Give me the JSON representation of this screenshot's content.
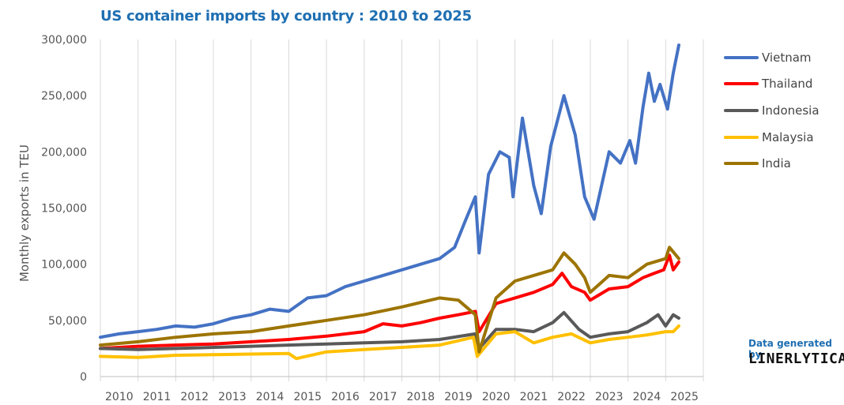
{
  "chart_data": {
    "type": "line",
    "title": "US container imports by country : 2010 to 2025",
    "xlabel": "",
    "ylabel": "Monthly exports in TEU",
    "ylim": [
      0,
      300000
    ],
    "yticks": [
      "0",
      "50,000",
      "100,000",
      "150,000",
      "200,000",
      "250,000",
      "300,000"
    ],
    "ytick_values": [
      0,
      50000,
      100000,
      150000,
      200000,
      250000,
      300000
    ],
    "xticks": [
      "2010",
      "2011",
      "2012",
      "2013",
      "2014",
      "2015",
      "2016",
      "2017",
      "2018",
      "2019",
      "2020",
      "2021",
      "2022",
      "2023",
      "2024",
      "2025"
    ],
    "grid": "vertical",
    "legend": "right",
    "series": [
      {
        "name": "Vietnam",
        "color": "#4472c4",
        "x": [
          2010.0,
          2010.5,
          2011.0,
          2011.5,
          2012.0,
          2012.5,
          2013.0,
          2013.5,
          2014.0,
          2014.5,
          2015.0,
          2015.5,
          2016.0,
          2016.5,
          2017.0,
          2017.5,
          2018.0,
          2018.5,
          2019.0,
          2019.4,
          2019.7,
          2019.95,
          2020.05,
          2020.3,
          2020.6,
          2020.85,
          2020.95,
          2021.2,
          2021.5,
          2021.7,
          2021.95,
          2022.3,
          2022.6,
          2022.85,
          2023.1,
          2023.5,
          2023.8,
          2024.05,
          2024.2,
          2024.4,
          2024.55,
          2024.7,
          2024.85,
          2025.05,
          2025.2,
          2025.35
        ],
        "y": [
          35000,
          38000,
          40000,
          42000,
          45000,
          44000,
          47000,
          52000,
          55000,
          60000,
          58000,
          70000,
          72000,
          80000,
          85000,
          90000,
          95000,
          100000,
          105000,
          115000,
          140000,
          160000,
          110000,
          180000,
          200000,
          195000,
          160000,
          230000,
          170000,
          145000,
          205000,
          250000,
          215000,
          160000,
          140000,
          200000,
          190000,
          210000,
          190000,
          240000,
          270000,
          245000,
          260000,
          238000,
          270000,
          295000
        ]
      },
      {
        "name": "Thailand",
        "color": "#ff0000",
        "x": [
          2010.0,
          2011.0,
          2012.0,
          2013.0,
          2014.0,
          2015.0,
          2016.0,
          2017.0,
          2017.5,
          2018.0,
          2018.5,
          2019.0,
          2019.5,
          2019.95,
          2020.05,
          2020.5,
          2021.0,
          2021.5,
          2022.0,
          2022.25,
          2022.5,
          2022.85,
          2023.0,
          2023.5,
          2024.0,
          2024.4,
          2024.7,
          2024.95,
          2025.1,
          2025.2,
          2025.35
        ],
        "y": [
          25000,
          27000,
          28000,
          29000,
          31000,
          33000,
          36000,
          40000,
          47000,
          45000,
          48000,
          52000,
          55000,
          58000,
          40000,
          65000,
          70000,
          75000,
          82000,
          92000,
          80000,
          75000,
          68000,
          78000,
          80000,
          88000,
          92000,
          95000,
          108000,
          95000,
          102000
        ]
      },
      {
        "name": "Indonesia",
        "color": "#595959",
        "x": [
          2010.0,
          2011.0,
          2012.0,
          2013.0,
          2014.0,
          2015.0,
          2016.0,
          2017.0,
          2018.0,
          2019.0,
          2019.95,
          2020.05,
          2020.5,
          2021.0,
          2021.5,
          2022.0,
          2022.3,
          2022.7,
          2023.0,
          2023.5,
          2024.0,
          2024.5,
          2024.8,
          2025.0,
          2025.2,
          2025.35
        ],
        "y": [
          25000,
          24000,
          25000,
          26000,
          27000,
          28000,
          29000,
          30000,
          31000,
          33000,
          38000,
          25000,
          42000,
          42000,
          40000,
          48000,
          57000,
          42000,
          35000,
          38000,
          40000,
          48000,
          55000,
          45000,
          55000,
          52000
        ]
      },
      {
        "name": "Malaysia",
        "color": "#ffc000",
        "x": [
          2010.0,
          2011.0,
          2012.0,
          2013.0,
          2014.0,
          2015.0,
          2015.2,
          2016.0,
          2017.0,
          2018.0,
          2019.0,
          2019.9,
          2020.0,
          2020.5,
          2021.0,
          2021.5,
          2022.0,
          2022.5,
          2023.0,
          2023.5,
          2024.0,
          2024.5,
          2025.0,
          2025.2,
          2025.35
        ],
        "y": [
          18000,
          17000,
          19000,
          19500,
          20000,
          20500,
          16000,
          22000,
          24000,
          26000,
          28000,
          35000,
          18000,
          38000,
          40000,
          30000,
          35000,
          38000,
          30000,
          33000,
          35000,
          37000,
          40000,
          40000,
          45000
        ]
      },
      {
        "name": "India",
        "color": "#9c7400",
        "x": [
          2010.0,
          2011.0,
          2012.0,
          2013.0,
          2014.0,
          2015.0,
          2016.0,
          2017.0,
          2018.0,
          2019.0,
          2019.5,
          2019.95,
          2020.05,
          2020.5,
          2021.0,
          2021.5,
          2022.0,
          2022.3,
          2022.6,
          2022.85,
          2023.0,
          2023.5,
          2024.0,
          2024.5,
          2025.0,
          2025.1,
          2025.35
        ],
        "y": [
          28000,
          31000,
          35000,
          38000,
          40000,
          45000,
          50000,
          55000,
          62000,
          70000,
          68000,
          55000,
          22000,
          70000,
          85000,
          90000,
          95000,
          110000,
          100000,
          88000,
          75000,
          90000,
          88000,
          100000,
          105000,
          115000,
          105000
        ]
      }
    ]
  },
  "credit": "Data generated by",
  "brand": "LINERLYTICA"
}
